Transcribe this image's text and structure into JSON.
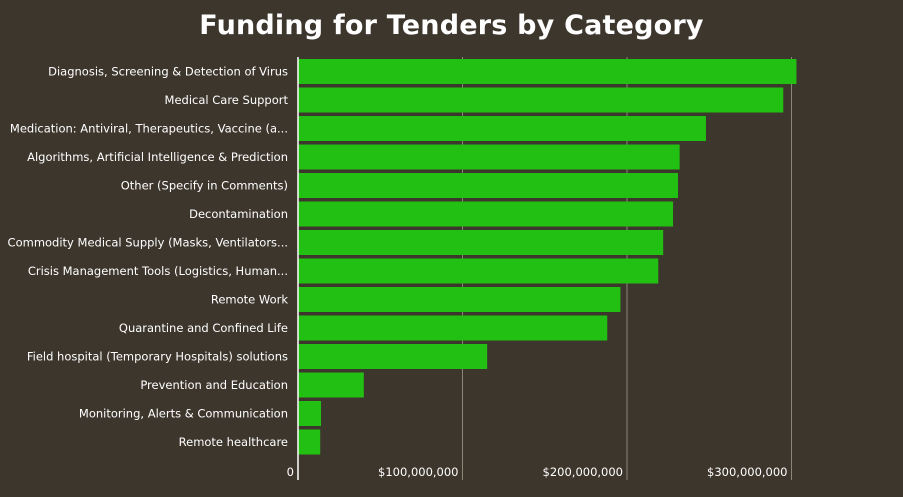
{
  "chart_data": {
    "type": "bar",
    "orientation": "horizontal",
    "title": "Funding for Tenders by Category",
    "xlabel": "",
    "ylabel": "",
    "xlim": [
      0,
      330000000
    ],
    "grid": "vertical",
    "bar_color": "#22c012",
    "background_color": "#3d362d",
    "categories": [
      "Diagnosis, Screening & Detection of Virus",
      "Medical Care Support",
      "Medication: Antiviral, Therapeutics, Vaccine (a...",
      "Algorithms, Artificial Intelligence & Prediction",
      "Other (Specify in Comments)",
      "Decontamination",
      "Commodity Medical Supply (Masks, Ventilators...",
      "Crisis Management Tools (Logistics, Human...",
      "Remote Work",
      "Quarantine and Confined Life",
      "Field hospital (Temporary Hospitals) solutions",
      "Prevention and Education",
      "Monitoring, Alerts & Communication",
      "Remote healthcare"
    ],
    "values": [
      303000000,
      295000000,
      248000000,
      232000000,
      231000000,
      228000000,
      222000000,
      219000000,
      196000000,
      188000000,
      115000000,
      40000000,
      14000000,
      13500000
    ],
    "ticks": [
      {
        "value": 0,
        "label": "0"
      },
      {
        "value": 100000000,
        "label": "$100,000,000"
      },
      {
        "value": 200000000,
        "label": "$200,000,000"
      },
      {
        "value": 300000000,
        "label": "$300,000,000"
      }
    ]
  }
}
